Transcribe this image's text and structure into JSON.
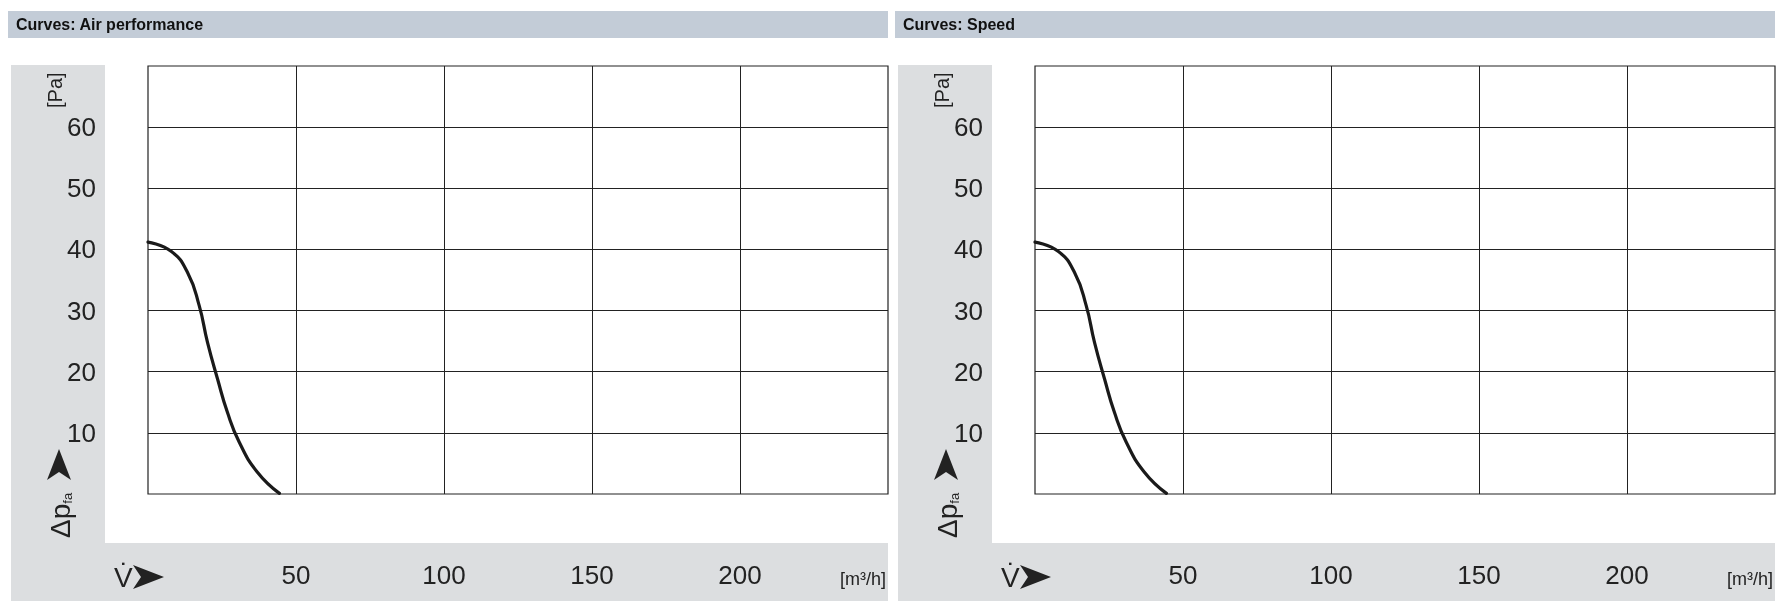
{
  "chart_data": [
    {
      "type": "line",
      "title": "Curves: Air performance",
      "xlabel": "V̇",
      "ylabel": "Δp$_{fa}$",
      "annotations": [
        "[Pa]",
        "[m³/h]"
      ],
      "x": [
        0,
        7.8,
        13.4,
        17.3,
        20.1,
        23.5,
        26.8,
        30.8,
        36.9,
        44.4
      ],
      "series": [
        {
          "color": "#1a1a1a",
          "values": [
            41.2,
            39.7,
            36.2,
            30.8,
            24.8,
            18.8,
            13.4,
            8.5,
            3.6,
            0.1
          ]
        }
      ],
      "xlim": [
        0,
        250
      ],
      "xticks": [
        50,
        100,
        150,
        200
      ],
      "ylim": [
        0,
        70
      ],
      "yticks": [
        10,
        20,
        30,
        40,
        50,
        60
      ],
      "grid": true,
      "marker": "none",
      "line_style": "solid"
    },
    {
      "type": "line",
      "title": "Curves: Speed",
      "xlabel": "V̇",
      "ylabel": "Δp$_{fa}$",
      "annotations": [
        "[Pa]",
        "[m³/h]"
      ],
      "x": [
        0,
        7.8,
        13.4,
        17.3,
        20.1,
        23.5,
        26.8,
        30.8,
        36.9,
        44.4
      ],
      "series": [
        {
          "color": "#1a1a1a",
          "values": [
            41.2,
            39.7,
            36.2,
            30.8,
            24.8,
            18.8,
            13.4,
            8.5,
            3.6,
            0.1
          ]
        }
      ],
      "xlim": [
        0,
        250
      ],
      "xticks": [
        50,
        100,
        150,
        200
      ],
      "ylim": [
        0,
        70
      ],
      "yticks": [
        10,
        20,
        30,
        40,
        50,
        60
      ],
      "grid": true,
      "marker": "none",
      "line_style": "solid"
    }
  ]
}
